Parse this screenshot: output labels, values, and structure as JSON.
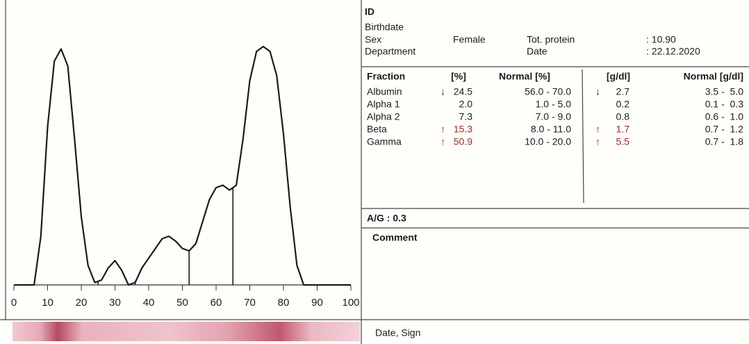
{
  "chart_data": {
    "type": "line",
    "x": [
      0,
      6,
      8,
      10,
      12,
      14,
      16,
      18,
      20,
      22,
      24,
      26,
      28,
      30,
      32,
      34,
      36,
      38,
      40,
      42,
      44,
      46,
      48,
      50,
      52,
      54,
      56,
      58,
      60,
      62,
      64,
      66,
      68,
      70,
      72,
      74,
      76,
      78,
      80,
      82,
      84,
      86,
      90,
      100
    ],
    "series": [
      {
        "color": "#1a1a1a",
        "values": [
          0,
          0,
          20,
          65,
          92,
          97,
          90,
          60,
          28,
          8,
          1,
          2,
          7,
          10,
          6,
          0,
          1,
          7,
          11,
          15,
          19,
          20,
          18,
          15,
          14,
          17,
          26,
          35,
          40,
          41,
          39,
          41,
          60,
          84,
          96,
          98,
          96,
          86,
          62,
          32,
          8,
          0,
          0,
          0
        ]
      }
    ],
    "xlim": [
      0,
      100
    ],
    "xticks": [
      0,
      10,
      20,
      30,
      40,
      50,
      60,
      70,
      80,
      90,
      100
    ],
    "ylim": [
      0,
      100
    ],
    "separators": [
      25,
      36,
      52,
      65
    ]
  },
  "header": {
    "id_label": "ID",
    "birthdate_label": "Birthdate",
    "sex_label": "Sex",
    "sex": "Female",
    "protein_label": "Tot. protein",
    "protein": ": 10.90",
    "department_label": "Department",
    "date_label": "Date",
    "date": ": 22.12.2020"
  },
  "table": {
    "columns": [
      "Fraction",
      "[%]",
      "Normal [%]",
      "[g/dl]",
      "Normal [g/dl]"
    ],
    "rows": [
      [
        "Albumin",
        "↓",
        "24.5",
        "56.0 - 70.0",
        "↓",
        "2.7",
        "3.5 -  5.0"
      ],
      [
        "Alpha 1",
        null,
        "2.0",
        "1.0 -  5.0",
        null,
        "0.2",
        "0.1 -  0.3"
      ],
      [
        "Alpha 2",
        null,
        "7.3",
        "7.0 -  9.0",
        null,
        "0.8",
        "0.6 -  1.0"
      ],
      [
        "Beta",
        "↑",
        "15.3",
        "8.0 - 11.0",
        "↑",
        "1.7",
        "0.7 -  1.2"
      ],
      [
        "Gamma",
        "↑",
        "50.9",
        "10.0 - 20.0",
        "↑",
        "5.5",
        "0.7 -  1.8"
      ]
    ]
  },
  "ag_ratio": "A/G : 0.3",
  "comment": "Comment",
  "sign": "Date, Sign"
}
